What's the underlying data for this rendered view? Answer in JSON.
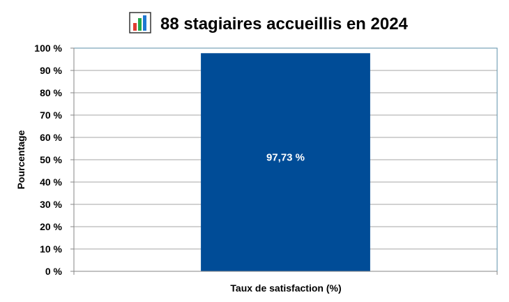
{
  "chart_data": {
    "type": "bar",
    "title": "88 stagiaires accueillis en 2024",
    "title_icon": "bar-chart-icon",
    "categories": [
      "Taux de satisfaction (%)"
    ],
    "values": [
      97.73
    ],
    "data_labels": [
      "97,73 %"
    ],
    "xlabel": "Taux de satisfaction (%)",
    "ylabel": "Pourcentage",
    "ylim": [
      0,
      100
    ],
    "yticks": [
      0,
      10,
      20,
      30,
      40,
      50,
      60,
      70,
      80,
      90,
      100
    ],
    "ytick_labels": [
      "0 %",
      "10 %",
      "20 %",
      "30 %",
      "40 %",
      "50 %",
      "60 %",
      "70 %",
      "80 %",
      "90 %",
      "100 %"
    ],
    "grid": true,
    "legend": "none",
    "colors": {
      "bar": "#004C97",
      "grid": "#A6A6A6",
      "axis": "#868686",
      "plot_border": "#5B8FA8",
      "icon_green": "#22A84A",
      "icon_red": "#E03C31",
      "icon_blue": "#1E78D2"
    }
  }
}
